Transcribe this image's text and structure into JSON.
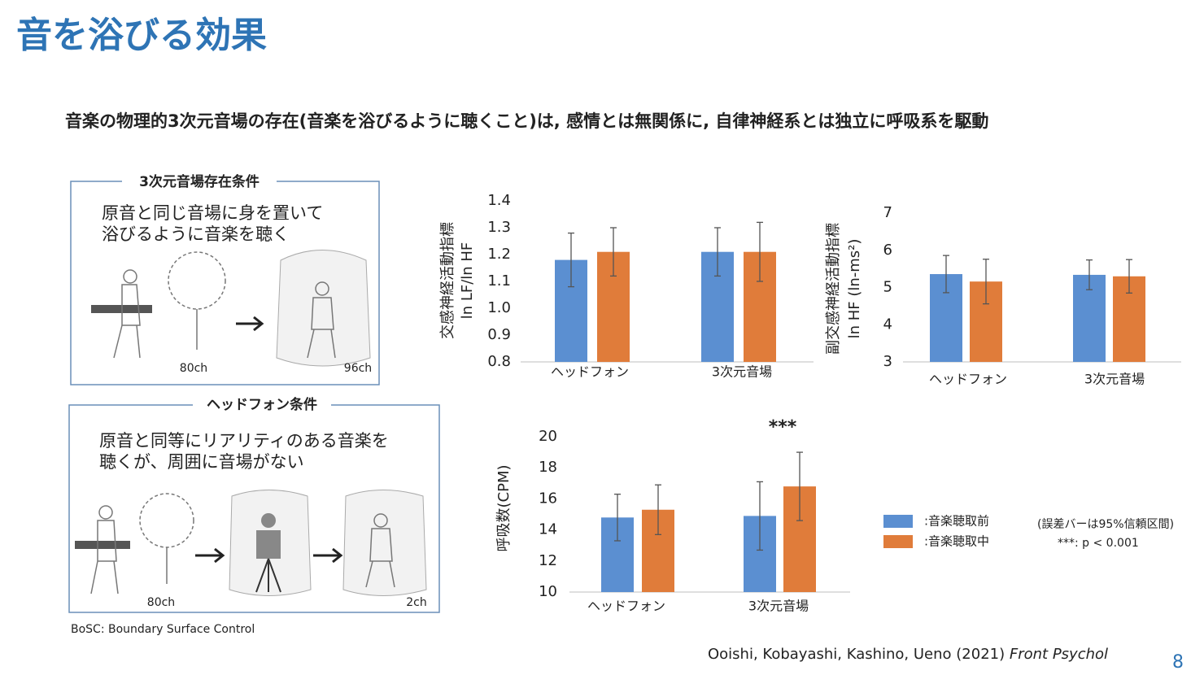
{
  "header": {
    "title": "音を浴びる効果"
  },
  "subtitle": "音楽の物理的3次元音場の存在(音楽を浴びるように聴くこと)は, 感情とは無関係に, 自律神経系とは独立に呼吸系を駆動",
  "panels": [
    {
      "label": "3次元音場存在条件",
      "lines": [
        "原音と同じ音場に身を置いて",
        "浴びるように音楽を聴く"
      ],
      "channels": [
        "80ch",
        "96ch"
      ]
    },
    {
      "label": "ヘッドフォン条件",
      "lines": [
        "原音と同等にリアリティのある音楽を",
        "聴くが、周囲に音場がない"
      ],
      "channels": [
        "80ch",
        "2ch"
      ]
    }
  ],
  "footnote": "BoSC: Boundary Surface Control",
  "citation": {
    "authors": "Ooishi, Kobayashi, Kashino, Ueno (2021)",
    "journal": "Front Psychol"
  },
  "page_number": "8",
  "chart_data": [
    {
      "type": "bar",
      "ylabel": [
        "交感神経活動指標",
        "ln LF/ln HF"
      ],
      "categories": [
        "ヘッドフォン",
        "3次元音場"
      ],
      "series": [
        {
          "color": "#5b8fd1",
          "values": [
            1.18,
            1.21
          ],
          "errors": [
            0.1,
            0.09
          ]
        },
        {
          "color": "#e07c3a",
          "values": [
            1.21,
            1.21
          ],
          "errors": [
            0.09,
            0.11
          ]
        }
      ],
      "ylim": [
        0.8,
        1.4
      ],
      "yticks": [
        0.8,
        0.9,
        {
          "value": 1,
          "label": "1.0"
        },
        1.1,
        1.2,
        1.3,
        1.4
      ]
    },
    {
      "type": "bar",
      "ylabel": [
        "副交感神経活動指標",
        "ln HF (ln-ms²)"
      ],
      "categories": [
        "ヘッドフォン",
        "3次元音場"
      ],
      "series": [
        {
          "color": "#5b8fd1",
          "values": [
            5.36,
            5.34
          ],
          "errors": [
            0.5,
            0.4
          ]
        },
        {
          "color": "#e07c3a",
          "values": [
            5.16,
            5.3
          ],
          "errors": [
            0.6,
            0.45
          ]
        }
      ],
      "ylim": [
        3,
        7
      ],
      "yticks": [
        3,
        4,
        5,
        6,
        7
      ]
    },
    {
      "type": "bar",
      "ylabel": [
        "呼吸数(CPM)"
      ],
      "categories": [
        "ヘッドフォン",
        "3次元音場"
      ],
      "series": [
        {
          "name": ":音楽聴取前",
          "color": "#5b8fd1",
          "values": [
            14.8,
            14.9
          ],
          "errors": [
            1.5,
            2.2
          ]
        },
        {
          "name": ":音楽聴取中",
          "color": "#e07c3a",
          "values": [
            15.3,
            16.8
          ],
          "errors": [
            1.6,
            2.2
          ]
        }
      ],
      "annotation": "***",
      "notes": [
        "(誤差バーは95%信頼区間)",
        "***: p < 0.001"
      ],
      "ylim": [
        10,
        20
      ],
      "yticks": [
        10,
        12,
        14,
        16,
        18,
        20
      ]
    }
  ]
}
